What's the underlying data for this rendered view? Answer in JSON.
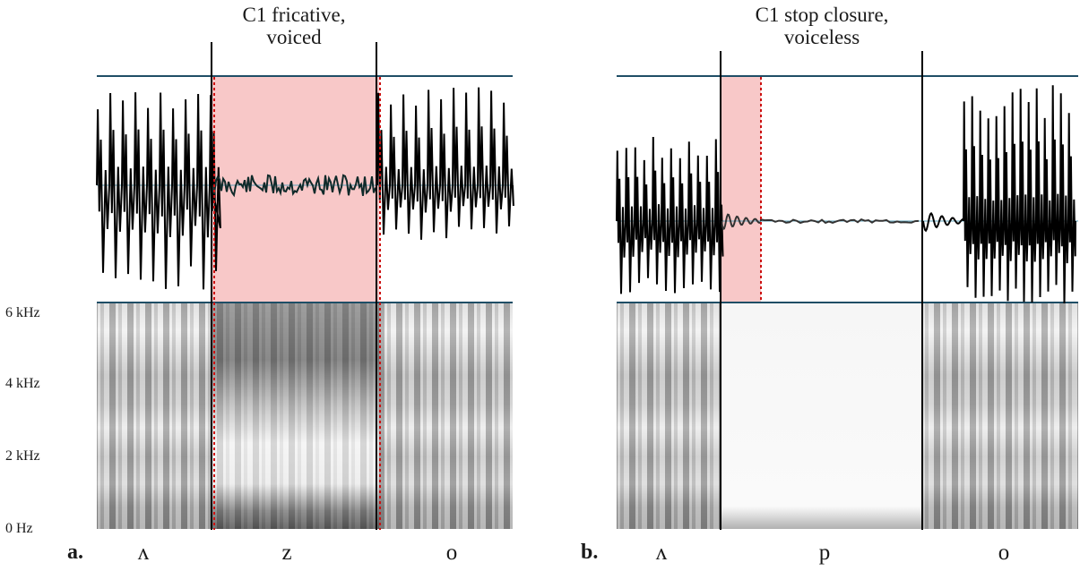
{
  "figure": {
    "freq_labels": [
      "6 kHz",
      "4 kHz",
      "2 kHz",
      "0 Hz"
    ],
    "panels": [
      {
        "letter": "a.",
        "caption_line1": "C1 fricative,",
        "caption_line2": "voiced",
        "segments": [
          "ʌ",
          "z",
          "o"
        ],
        "highlight_color": "#f8c8c8"
      },
      {
        "letter": "b.",
        "caption_line1": "C1 stop closure,",
        "caption_line2": "voiceless",
        "segments": [
          "ʌ",
          "p",
          "o"
        ],
        "highlight_color": "#f8c8c8"
      }
    ]
  }
}
